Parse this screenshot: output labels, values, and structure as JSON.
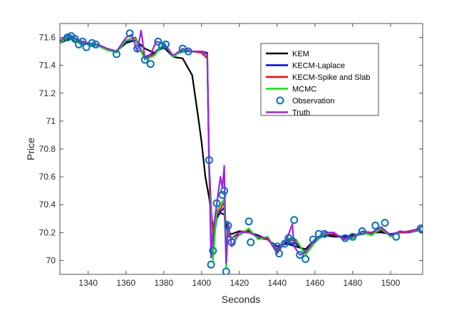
{
  "chart_data": {
    "type": "line",
    "title": "",
    "xlabel": "Seconds",
    "ylabel": "Price",
    "xlim": [
      1325,
      1517
    ],
    "ylim": [
      69.9,
      71.7
    ],
    "xticks": [
      1340,
      1360,
      1380,
      1400,
      1420,
      1440,
      1460,
      1480,
      1500
    ],
    "yticks": [
      70,
      70.2,
      70.4,
      70.6,
      70.8,
      71,
      71.2,
      71.4,
      71.6
    ],
    "ytick_labels": [
      "70",
      "70.2",
      "70.4",
      "70.6",
      "70.8",
      "71",
      "71.2",
      "71.4",
      "71.6"
    ],
    "grid": false,
    "legend_position": "top-right",
    "series": [
      {
        "name": "KEM",
        "color": "#000000",
        "marker": "line",
        "x": [
          1325,
          1330,
          1335,
          1340,
          1345,
          1350,
          1355,
          1360,
          1365,
          1370,
          1375,
          1380,
          1385,
          1390,
          1395,
          1398,
          1400,
          1402,
          1404,
          1406,
          1408,
          1410,
          1412,
          1414,
          1416,
          1420,
          1425,
          1430,
          1435,
          1440,
          1445,
          1450,
          1455,
          1460,
          1465,
          1470,
          1475,
          1480,
          1485,
          1490,
          1495,
          1500,
          1505,
          1510,
          1516
        ],
        "y": [
          71.56,
          71.59,
          71.57,
          71.55,
          71.54,
          71.52,
          71.5,
          71.56,
          71.58,
          71.52,
          71.49,
          71.53,
          71.46,
          71.45,
          71.33,
          71.05,
          70.85,
          70.6,
          70.45,
          70.24,
          70.32,
          70.34,
          70.33,
          70.2,
          70.19,
          70.21,
          70.2,
          70.18,
          70.15,
          70.1,
          70.12,
          70.1,
          70.08,
          70.15,
          70.18,
          70.17,
          70.17,
          70.18,
          70.19,
          70.2,
          70.2,
          70.19,
          70.2,
          70.21,
          70.23
        ]
      },
      {
        "name": "KECM-Laplace",
        "color": "#0000ff",
        "marker": "line",
        "x": [
          1325,
          1330,
          1335,
          1340,
          1345,
          1350,
          1355,
          1360,
          1365,
          1370,
          1375,
          1380,
          1385,
          1390,
          1395,
          1400,
          1403,
          1404,
          1406,
          1408,
          1410,
          1412,
          1413,
          1414,
          1416,
          1420,
          1425,
          1430,
          1435,
          1440,
          1445,
          1450,
          1455,
          1460,
          1465,
          1470,
          1475,
          1480,
          1485,
          1490,
          1495,
          1500,
          1505,
          1510,
          1516
        ],
        "y": [
          71.57,
          71.6,
          71.57,
          71.55,
          71.55,
          71.52,
          71.5,
          71.57,
          71.58,
          71.46,
          71.49,
          71.55,
          71.47,
          71.5,
          71.5,
          71.5,
          71.49,
          70.68,
          70.1,
          70.3,
          70.35,
          70.38,
          70.05,
          70.18,
          70.16,
          70.2,
          70.21,
          70.17,
          70.15,
          70.1,
          70.13,
          70.12,
          70.06,
          70.14,
          70.18,
          70.18,
          70.17,
          70.17,
          70.19,
          70.2,
          70.21,
          70.19,
          70.2,
          70.2,
          70.22
        ]
      },
      {
        "name": "KECM-Spike and Slab",
        "color": "#ff0000",
        "marker": "line",
        "x": [
          1325,
          1330,
          1335,
          1340,
          1345,
          1350,
          1355,
          1360,
          1365,
          1370,
          1375,
          1380,
          1385,
          1390,
          1395,
          1400,
          1403,
          1404,
          1406,
          1408,
          1410,
          1412,
          1413,
          1414,
          1416,
          1420,
          1425,
          1430,
          1435,
          1440,
          1445,
          1450,
          1455,
          1460,
          1465,
          1470,
          1475,
          1480,
          1485,
          1490,
          1495,
          1500,
          1505,
          1510,
          1516
        ],
        "y": [
          71.58,
          71.6,
          71.58,
          71.55,
          71.55,
          71.52,
          71.5,
          71.58,
          71.6,
          71.45,
          71.48,
          71.55,
          71.47,
          71.51,
          71.5,
          71.49,
          71.45,
          70.66,
          70.12,
          70.33,
          70.37,
          70.42,
          70.02,
          70.2,
          70.15,
          70.2,
          70.22,
          70.16,
          70.15,
          70.08,
          70.15,
          70.14,
          70.05,
          70.14,
          70.19,
          70.19,
          70.16,
          70.17,
          70.2,
          70.19,
          70.22,
          70.18,
          70.2,
          70.21,
          70.22
        ]
      },
      {
        "name": "MCMC",
        "color": "#00ee00",
        "marker": "line",
        "x": [
          1325,
          1330,
          1335,
          1340,
          1345,
          1350,
          1355,
          1360,
          1365,
          1370,
          1375,
          1380,
          1385,
          1390,
          1395,
          1400,
          1403,
          1404,
          1406,
          1408,
          1410,
          1412,
          1413,
          1414,
          1416,
          1420,
          1425,
          1430,
          1435,
          1440,
          1445,
          1450,
          1455,
          1460,
          1465,
          1470,
          1475,
          1480,
          1485,
          1490,
          1495,
          1500,
          1505,
          1510,
          1516
        ],
        "y": [
          71.56,
          71.61,
          71.56,
          71.55,
          71.54,
          71.51,
          71.49,
          71.58,
          71.59,
          71.44,
          71.47,
          71.56,
          71.46,
          71.51,
          71.5,
          71.5,
          71.47,
          70.62,
          70.0,
          70.35,
          70.4,
          70.44,
          69.95,
          70.22,
          70.16,
          70.18,
          70.23,
          70.15,
          70.17,
          70.06,
          70.16,
          70.15,
          70.04,
          70.13,
          70.19,
          70.2,
          70.15,
          70.16,
          70.2,
          70.18,
          70.23,
          70.17,
          70.21,
          70.2,
          70.23
        ]
      },
      {
        "name": "Observation",
        "color": "#0072bd",
        "marker": "circle",
        "x": [
          1329,
          1331,
          1333,
          1335,
          1337,
          1339,
          1342,
          1344,
          1355,
          1362,
          1366,
          1370,
          1373,
          1377,
          1379,
          1381,
          1390,
          1393,
          1404,
          1405,
          1406,
          1408,
          1411,
          1412,
          1413,
          1414,
          1416,
          1425,
          1426,
          1440,
          1441,
          1444,
          1446,
          1448,
          1449,
          1452,
          1455,
          1459,
          1462,
          1465,
          1476,
          1480,
          1485,
          1492,
          1497,
          1503,
          1516,
          1517
        ],
        "y": [
          71.6,
          71.61,
          71.59,
          71.55,
          71.57,
          71.53,
          71.56,
          71.55,
          71.48,
          71.63,
          71.52,
          71.44,
          71.41,
          71.57,
          71.54,
          71.55,
          71.52,
          71.5,
          70.72,
          69.97,
          70.07,
          70.41,
          70.47,
          70.5,
          69.92,
          70.25,
          70.13,
          70.28,
          70.13,
          70.1,
          70.05,
          70.12,
          70.16,
          70.14,
          70.29,
          70.04,
          70.01,
          70.15,
          70.19,
          70.19,
          70.16,
          70.17,
          70.21,
          70.25,
          70.27,
          70.17,
          70.23,
          70.22
        ]
      },
      {
        "name": "Truth",
        "color": "#a020f0",
        "marker": "line",
        "x": [
          1325,
          1330,
          1335,
          1340,
          1345,
          1350,
          1355,
          1360,
          1363,
          1366,
          1368,
          1370,
          1373,
          1376,
          1380,
          1385,
          1390,
          1395,
          1400,
          1403,
          1404,
          1405,
          1406,
          1408,
          1410,
          1411,
          1412,
          1413,
          1414,
          1416,
          1420,
          1425,
          1430,
          1435,
          1440,
          1445,
          1448,
          1449,
          1452,
          1455,
          1460,
          1465,
          1470,
          1475,
          1480,
          1485,
          1490,
          1495,
          1500,
          1505,
          1510,
          1516
        ],
        "y": [
          71.58,
          71.62,
          71.58,
          71.56,
          71.55,
          71.52,
          71.5,
          71.6,
          71.62,
          71.5,
          71.65,
          71.45,
          71.48,
          71.57,
          71.56,
          71.47,
          71.52,
          71.5,
          71.5,
          71.48,
          70.7,
          70.02,
          70.2,
          70.4,
          70.6,
          70.52,
          70.68,
          69.98,
          70.28,
          70.1,
          70.2,
          70.2,
          70.17,
          70.16,
          70.05,
          70.15,
          70.26,
          70.1,
          70.04,
          70.06,
          70.15,
          70.2,
          70.2,
          70.15,
          70.17,
          70.21,
          70.2,
          70.24,
          70.18,
          70.21,
          70.2,
          70.24
        ]
      }
    ]
  }
}
